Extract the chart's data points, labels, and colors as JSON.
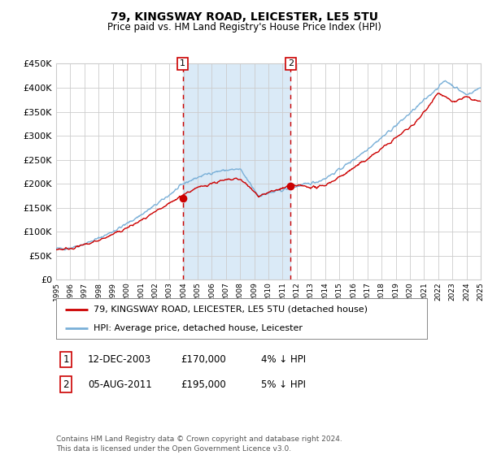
{
  "title": "79, KINGSWAY ROAD, LEICESTER, LE5 5TU",
  "subtitle": "Price paid vs. HM Land Registry's House Price Index (HPI)",
  "legend_line1": "79, KINGSWAY ROAD, LEICESTER, LE5 5TU (detached house)",
  "legend_line2": "HPI: Average price, detached house, Leicester",
  "annotation1_label": "1",
  "annotation1_date": "12-DEC-2003",
  "annotation1_price": "£170,000",
  "annotation1_hpi": "4% ↓ HPI",
  "annotation2_label": "2",
  "annotation2_date": "05-AUG-2011",
  "annotation2_price": "£195,000",
  "annotation2_hpi": "5% ↓ HPI",
  "footer": "Contains HM Land Registry data © Crown copyright and database right 2024.\nThis data is licensed under the Open Government Licence v3.0.",
  "hpi_color": "#7ab0d8",
  "price_color": "#cc0000",
  "marker_color": "#cc0000",
  "bg_color": "#ffffff",
  "grid_color": "#cccccc",
  "shade_color": "#daeaf7",
  "dashed_color": "#cc0000",
  "year_start": 1995,
  "year_end": 2025,
  "ylim_min": 0,
  "ylim_max": 450000,
  "sale1_year": 2003.95,
  "sale1_value": 170000,
  "sale2_year": 2011.58,
  "sale2_value": 195000
}
